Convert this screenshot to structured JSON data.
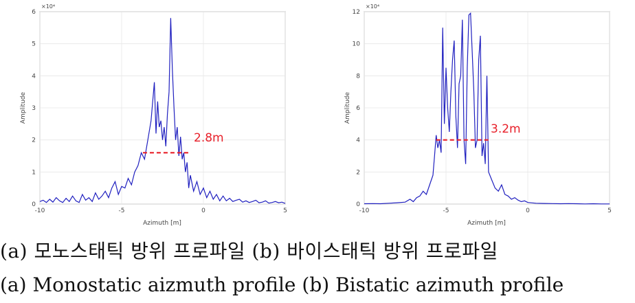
{
  "charts": [
    {
      "id": "a",
      "exponent_label": "×10⁴",
      "annotation": "2.8m",
      "caption_kr": "(a) 모노스태틱 방위 프로파일",
      "caption_en": "(a) Monostatic aizmuth profile"
    },
    {
      "id": "b",
      "exponent_label": "×10⁴",
      "annotation": "3.2m",
      "caption_kr": "(b) 바이스태틱 방위 프로파일",
      "caption_en": "(b) Bistatic azimuth profile"
    }
  ],
  "captions": {
    "korean": "(a) 모노스태틱 방위 프로파일 (b) 바이스태틱 방위 프로파일",
    "english": "(a) Monostatic aizmuth profile   (b) Bistatic azimuth profile"
  },
  "chart_data": [
    {
      "type": "line",
      "title": "(a) Monostatic aizmuth profile",
      "xlabel": "Azimuth [m]",
      "ylabel": "Amplitude",
      "y_scale_exponent": 4,
      "xlim": [
        -10,
        5
      ],
      "ylim": [
        0,
        6
      ],
      "xticks": [
        -10,
        -5,
        0,
        5
      ],
      "yticks": [
        0,
        1,
        2,
        3,
        4,
        5,
        6
      ],
      "line_color": "#1f1fbf",
      "annotation": {
        "text": "2.8m",
        "color": "#e8202a",
        "y": 1.6,
        "x_from": -3.7,
        "x_to": -0.9
      },
      "series": [
        {
          "name": "monostatic",
          "x": [
            -10,
            -9.8,
            -9.6,
            -9.4,
            -9.2,
            -9,
            -8.8,
            -8.6,
            -8.4,
            -8.2,
            -8,
            -7.8,
            -7.6,
            -7.4,
            -7.2,
            -7,
            -6.8,
            -6.6,
            -6.4,
            -6.2,
            -6,
            -5.8,
            -5.6,
            -5.4,
            -5.2,
            -5,
            -4.8,
            -4.6,
            -4.4,
            -4.2,
            -4,
            -3.8,
            -3.6,
            -3.4,
            -3.2,
            -3,
            -2.9,
            -2.8,
            -2.7,
            -2.6,
            -2.5,
            -2.4,
            -2.3,
            -2.2,
            -2.1,
            -2,
            -1.9,
            -1.8,
            -1.7,
            -1.6,
            -1.5,
            -1.4,
            -1.3,
            -1.2,
            -1.1,
            -1,
            -0.9,
            -0.8,
            -0.6,
            -0.4,
            -0.2,
            0,
            0.2,
            0.4,
            0.6,
            0.8,
            1,
            1.2,
            1.4,
            1.6,
            1.8,
            2,
            2.2,
            2.4,
            2.6,
            2.8,
            3,
            3.2,
            3.4,
            3.6,
            3.8,
            4,
            4.2,
            4.4,
            4.6,
            4.8,
            5
          ],
          "y": [
            0.08,
            0.12,
            0.05,
            0.15,
            0.06,
            0.2,
            0.1,
            0.05,
            0.18,
            0.08,
            0.25,
            0.1,
            0.05,
            0.3,
            0.12,
            0.2,
            0.08,
            0.35,
            0.15,
            0.25,
            0.4,
            0.2,
            0.5,
            0.7,
            0.3,
            0.55,
            0.5,
            0.8,
            0.6,
            1.0,
            1.2,
            1.6,
            1.4,
            2.0,
            2.6,
            3.8,
            2.2,
            3.2,
            2.4,
            2.6,
            2.0,
            2.4,
            1.8,
            2.8,
            3.5,
            5.8,
            4.2,
            3.0,
            2.0,
            2.4,
            1.5,
            2.1,
            1.4,
            1.6,
            1.0,
            1.3,
            0.5,
            0.9,
            0.4,
            0.7,
            0.3,
            0.5,
            0.2,
            0.4,
            0.15,
            0.3,
            0.1,
            0.25,
            0.1,
            0.18,
            0.08,
            0.12,
            0.15,
            0.06,
            0.1,
            0.05,
            0.08,
            0.12,
            0.04,
            0.06,
            0.1,
            0.03,
            0.05,
            0.08,
            0.04,
            0.06,
            0.02
          ]
        }
      ]
    },
    {
      "type": "line",
      "title": "(b) Bistatic azimuth profile",
      "xlabel": "Azimuth [m]",
      "ylabel": "Amplitude",
      "y_scale_exponent": 4,
      "xlim": [
        -10,
        5
      ],
      "ylim": [
        0,
        12
      ],
      "xticks": [
        -10,
        -5,
        0,
        5
      ],
      "yticks": [
        0,
        2,
        4,
        6,
        8,
        10,
        12
      ],
      "line_color": "#1f1fbf",
      "annotation": {
        "text": "3.2m",
        "color": "#e8202a",
        "y": 4.0,
        "x_from": -5.6,
        "x_to": -2.4
      },
      "series": [
        {
          "name": "bistatic",
          "x": [
            -10,
            -9.5,
            -9,
            -8.5,
            -8,
            -7.5,
            -7.2,
            -7,
            -6.8,
            -6.6,
            -6.4,
            -6.2,
            -6,
            -5.8,
            -5.7,
            -5.6,
            -5.5,
            -5.4,
            -5.3,
            -5.2,
            -5.1,
            -5,
            -4.9,
            -4.8,
            -4.7,
            -4.6,
            -4.5,
            -4.4,
            -4.3,
            -4.2,
            -4.1,
            -4,
            -3.9,
            -3.8,
            -3.7,
            -3.6,
            -3.5,
            -3.4,
            -3.3,
            -3.2,
            -3.1,
            -3,
            -2.9,
            -2.8,
            -2.7,
            -2.6,
            -2.5,
            -2.4,
            -2.2,
            -2,
            -1.8,
            -1.6,
            -1.4,
            -1.2,
            -1,
            -0.8,
            -0.6,
            -0.4,
            -0.2,
            0,
            0.5,
            1,
            1.5,
            2,
            2.5,
            3,
            3.5,
            4,
            4.5,
            5
          ],
          "y": [
            0.02,
            0.03,
            0.02,
            0.05,
            0.08,
            0.12,
            0.3,
            0.15,
            0.4,
            0.5,
            0.8,
            0.6,
            1.2,
            1.8,
            3.0,
            4.3,
            3.5,
            4.0,
            3.2,
            11.0,
            5.0,
            8.5,
            6.0,
            4.5,
            7.0,
            9.0,
            10.2,
            5.5,
            3.5,
            7.5,
            8.0,
            11.5,
            4.0,
            2.5,
            8.5,
            11.8,
            11.9,
            9.5,
            7.0,
            3.5,
            4.0,
            9.0,
            10.5,
            3.0,
            3.8,
            2.5,
            8.0,
            2.0,
            1.5,
            1.0,
            0.8,
            1.2,
            0.6,
            0.5,
            0.3,
            0.4,
            0.25,
            0.15,
            0.2,
            0.1,
            0.05,
            0.04,
            0.03,
            0.02,
            0.03,
            0.02,
            0.01,
            0.02,
            0.01,
            0.01
          ]
        }
      ]
    }
  ]
}
